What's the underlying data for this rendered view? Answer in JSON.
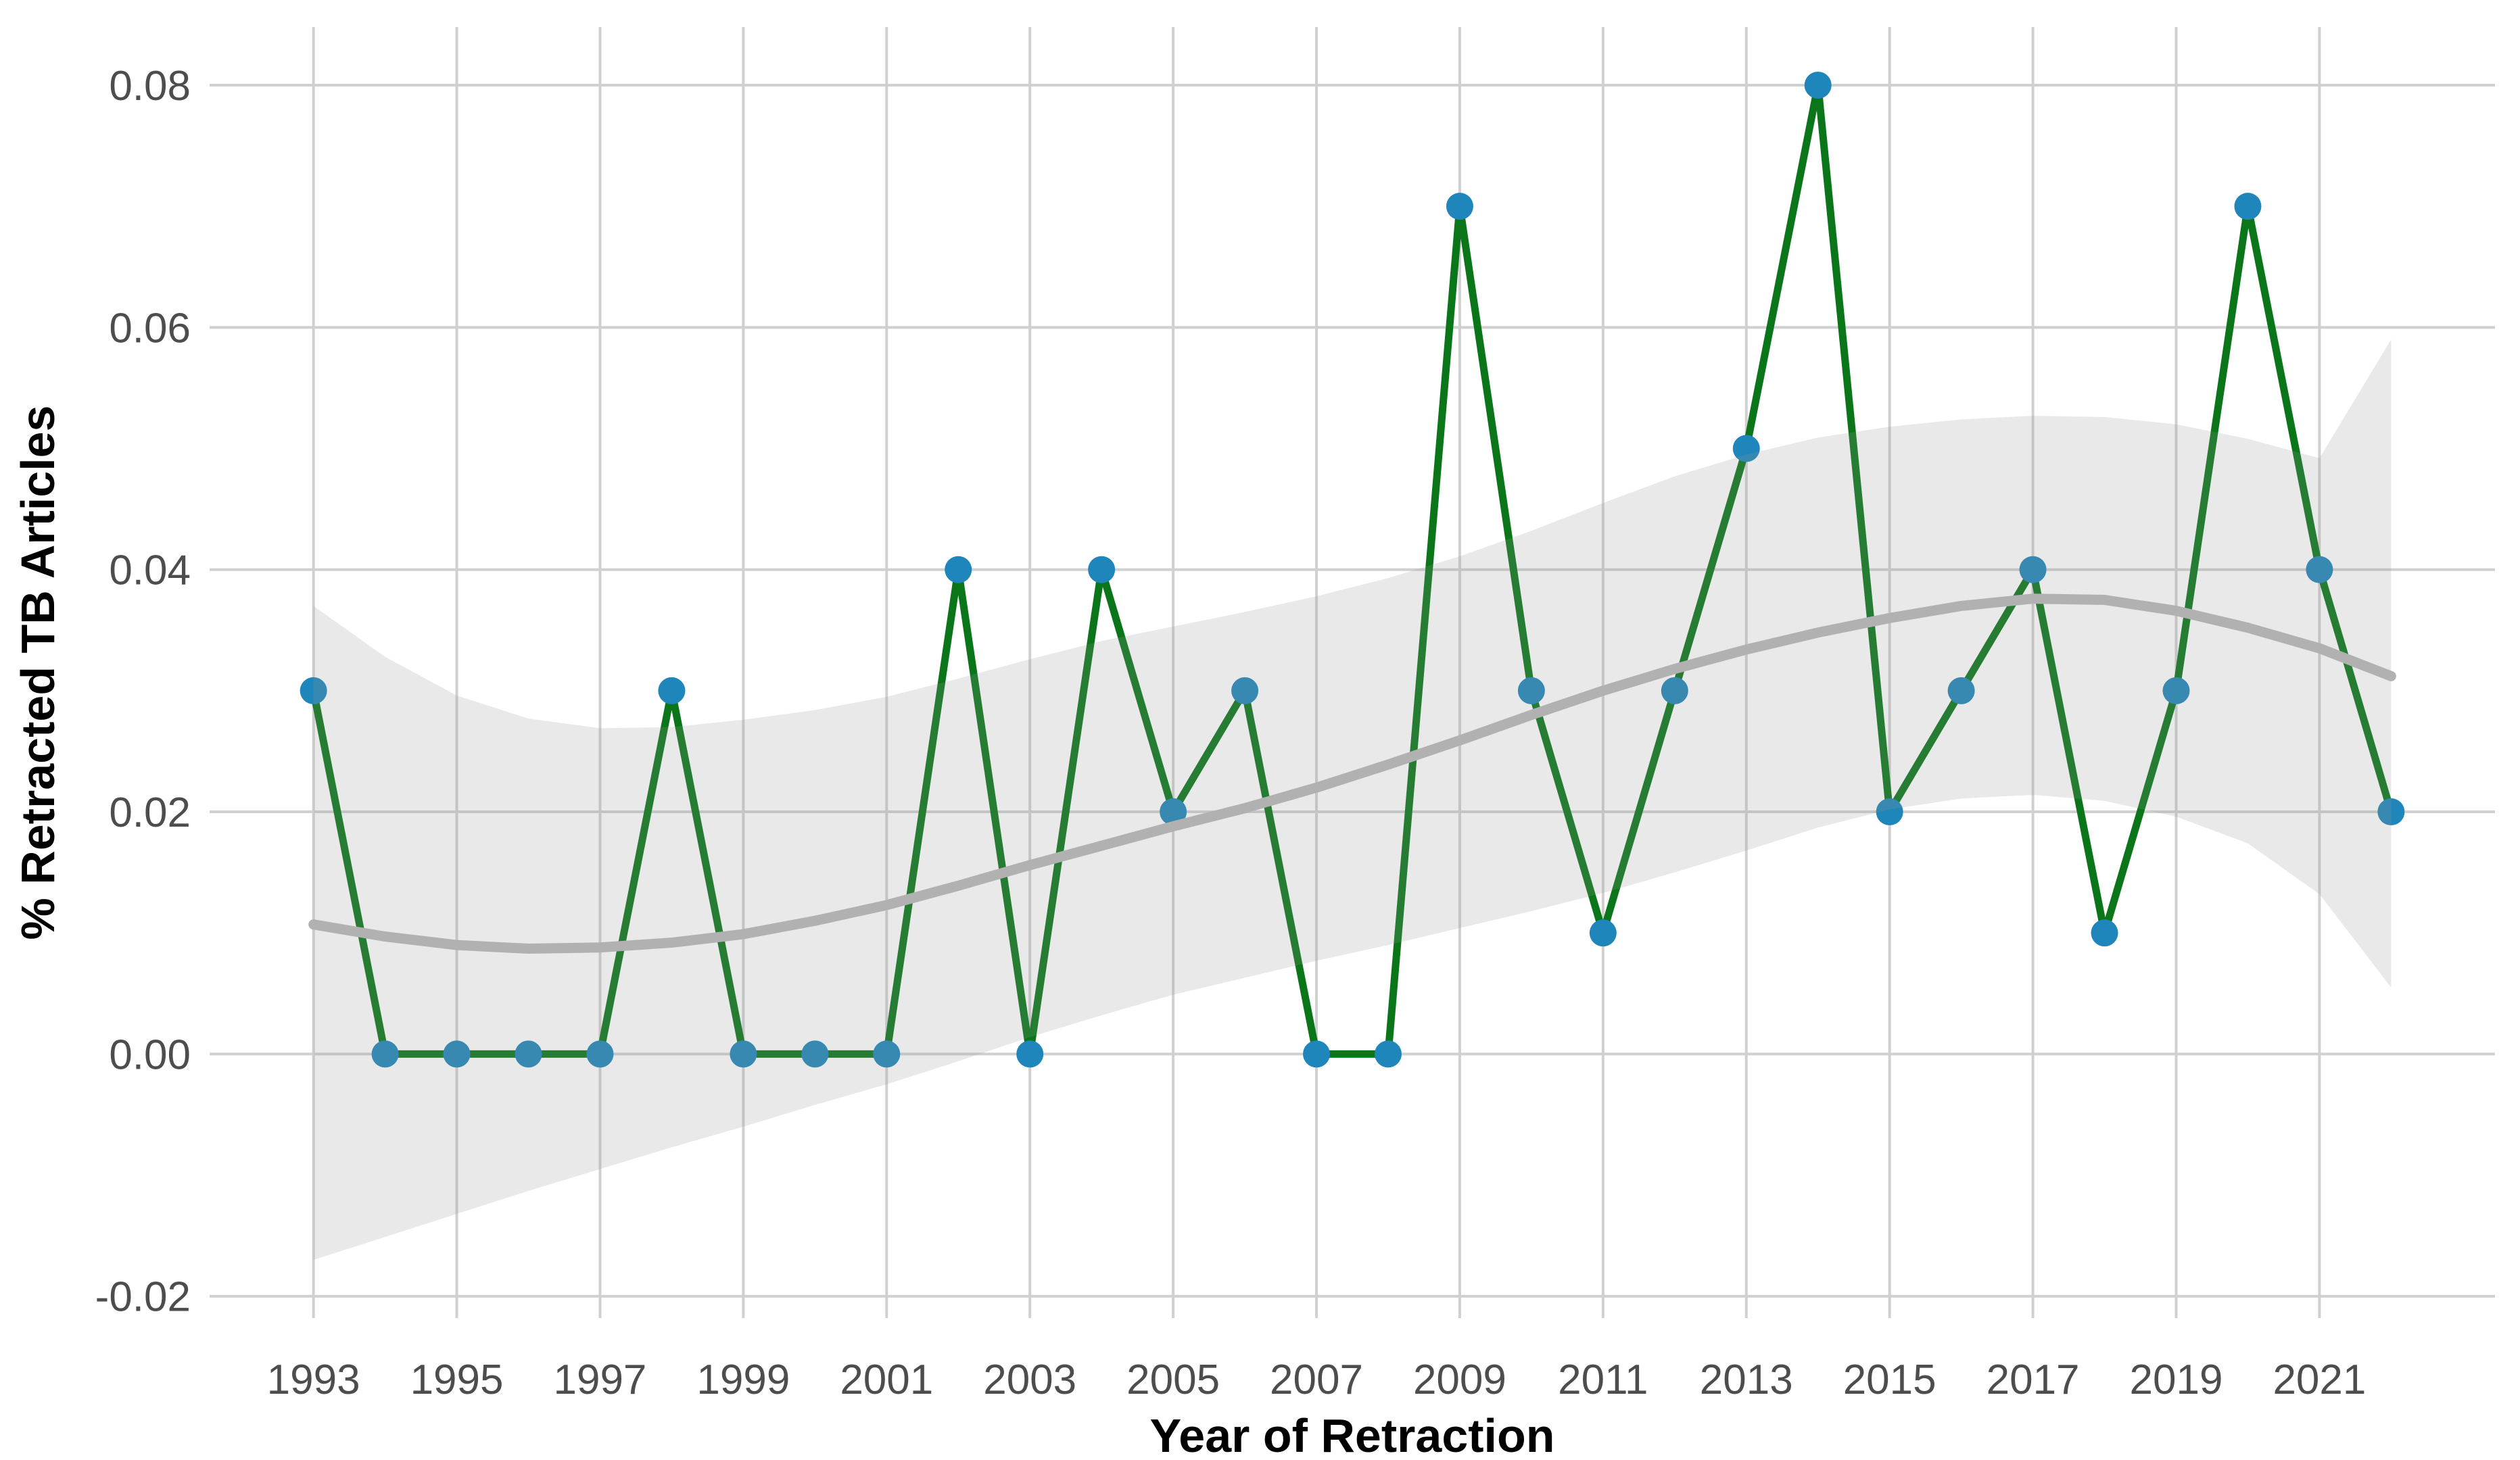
{
  "chart_data": {
    "type": "line",
    "title": "",
    "xlabel": "Year of Retraction",
    "ylabel": "% Retracted TB Articles",
    "x": [
      1993,
      1994,
      1995,
      1996,
      1997,
      1998,
      1999,
      2000,
      2001,
      2002,
      2003,
      2004,
      2005,
      2006,
      2007,
      2008,
      2009,
      2010,
      2011,
      2012,
      2013,
      2014,
      2015,
      2016,
      2017,
      2018,
      2019,
      2020,
      2021,
      2022
    ],
    "series": [
      {
        "name": "percent-retracted-tb-articles",
        "type": "line+points",
        "values": [
          0.03,
          0.0,
          0.0,
          0.0,
          0.0,
          0.03,
          0.0,
          0.0,
          0.0,
          0.04,
          0.0,
          0.04,
          0.02,
          0.03,
          0.0,
          0.0,
          0.07,
          0.03,
          0.01,
          0.03,
          0.05,
          0.08,
          0.02,
          0.03,
          0.04,
          0.01,
          0.03,
          0.07,
          0.04,
          0.02
        ]
      },
      {
        "name": "loess-smooth",
        "type": "line",
        "values": [
          0.0107,
          0.0097,
          0.009,
          0.0087,
          0.0088,
          0.0092,
          0.0099,
          0.011,
          0.0123,
          0.0139,
          0.0156,
          0.0172,
          0.0188,
          0.0203,
          0.022,
          0.0239,
          0.0259,
          0.028,
          0.03,
          0.0318,
          0.0334,
          0.0348,
          0.036,
          0.037,
          0.0376,
          0.0375,
          0.0366,
          0.0352,
          0.0335,
          0.0312
        ]
      },
      {
        "name": "confidence-ribbon",
        "type": "ribbon",
        "upper": [
          0.037,
          0.0328,
          0.0296,
          0.0277,
          0.0269,
          0.027,
          0.0276,
          0.0284,
          0.0295,
          0.031,
          0.0326,
          0.0341,
          0.0353,
          0.0365,
          0.0378,
          0.0393,
          0.0411,
          0.0432,
          0.0455,
          0.0477,
          0.0495,
          0.0509,
          0.0518,
          0.0524,
          0.0527,
          0.0526,
          0.052,
          0.0508,
          0.0492,
          0.059
        ],
        "lower": [
          -0.017,
          -0.0151,
          -0.0132,
          -0.0113,
          -0.0095,
          -0.0077,
          -0.006,
          -0.0042,
          -0.0025,
          -0.0006,
          0.0014,
          0.0032,
          0.0049,
          0.0063,
          0.0077,
          0.009,
          0.0104,
          0.0118,
          0.0133,
          0.015,
          0.0168,
          0.0187,
          0.0202,
          0.0211,
          0.0214,
          0.0209,
          0.0196,
          0.0174,
          0.0132,
          0.0055
        ]
      }
    ],
    "xticks": [
      1993,
      1995,
      1997,
      1999,
      2001,
      2003,
      2005,
      2007,
      2009,
      2011,
      2013,
      2015,
      2017,
      2019,
      2021
    ],
    "yticks": [
      -0.02,
      0.0,
      0.02,
      0.04,
      0.06,
      0.08
    ],
    "ytick_labels": [
      "-0.02",
      "0.00",
      "0.02",
      "0.04",
      "0.06",
      "0.08"
    ],
    "xlim": [
      1991.55,
      2023.45
    ],
    "ylim": [
      -0.0218,
      0.0848
    ],
    "grid": "major-only",
    "legend": "none",
    "colors": {
      "data_line": "#0a7519",
      "data_point": "#1e86ba",
      "smooth_line": "#b1b1b1",
      "ribbon_fill": "#999999",
      "ribbon_opacity": 0.21,
      "gridline": "#d0d0d0",
      "tick_text": "#4d4d4d",
      "title_text": "#000000",
      "background": "#ffffff"
    }
  }
}
